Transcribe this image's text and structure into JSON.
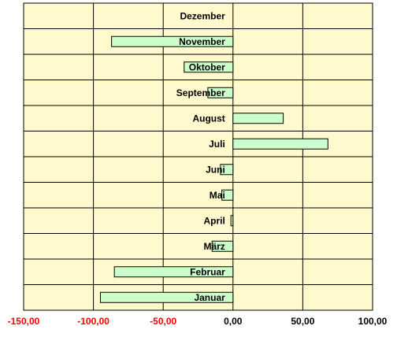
{
  "chart_data": {
    "type": "bar",
    "orientation": "horizontal",
    "categories": [
      "Januar",
      "Februar",
      "März",
      "April",
      "Mai",
      "Juni",
      "Juli",
      "August",
      "September",
      "Oktober",
      "November",
      "Dezember"
    ],
    "values": [
      -95,
      -85,
      -15,
      -1.5,
      -8,
      -9,
      68,
      36,
      -18,
      -35,
      -87,
      0
    ],
    "title": "",
    "xlabel": "",
    "ylabel": "",
    "xlim": [
      -150,
      100
    ],
    "x_tick_values": [
      -150,
      -100,
      -50,
      0,
      50,
      100
    ],
    "x_tick_labels": [
      "-150,00",
      "-100,00",
      "-50,00",
      "0,00",
      "50,00",
      "100,00"
    ],
    "grid": true,
    "legend": "none",
    "colors": {
      "plot_background": "#FFFACD",
      "bar_fill": "#CCFFCC",
      "bar_stroke": "#000000",
      "gridline": "#000000",
      "negative_tick_label": "#FF0000",
      "positive_tick_label": "#000000"
    }
  }
}
